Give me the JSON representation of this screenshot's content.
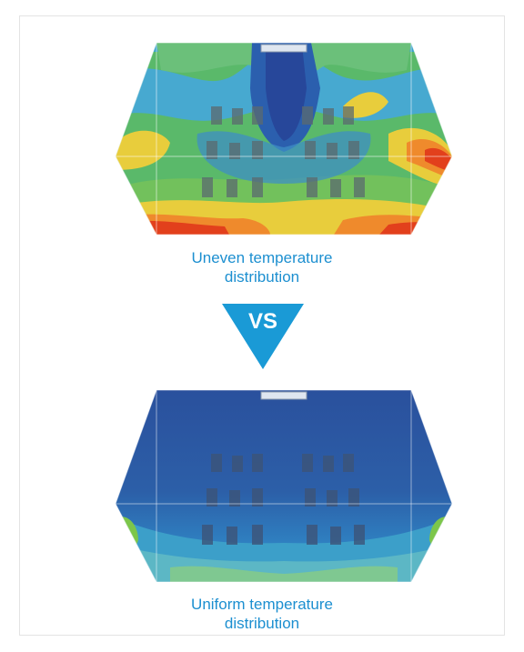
{
  "comparison": {
    "top": {
      "caption_line1": "Uneven temperature",
      "caption_line2": "distribution"
    },
    "vs_label": "VS",
    "bottom": {
      "caption_line1": "Uniform temperature",
      "caption_line2": "distribution"
    }
  },
  "colors": {
    "accent": "#1c8fd0",
    "vs_badge": "#1a9ad6",
    "hot": "#e2401c",
    "warm": "#f0c43a",
    "mild": "#7cc64a",
    "cool": "#2a7fbf",
    "cold": "#2a4f9c"
  }
}
